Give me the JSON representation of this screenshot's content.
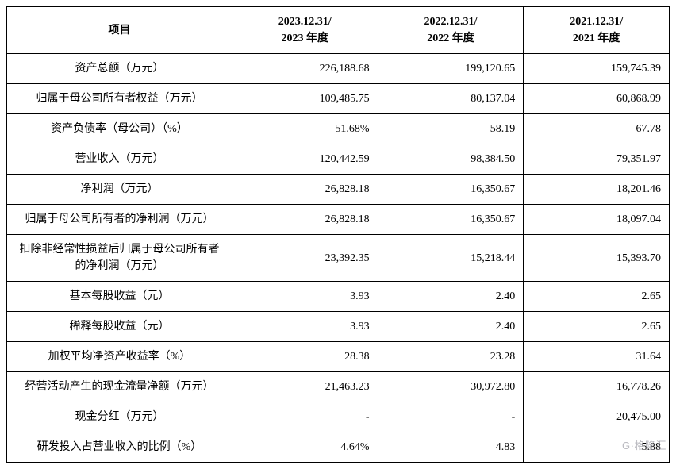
{
  "table": {
    "type": "table",
    "background_color": "#ffffff",
    "border_color": "#000000",
    "text_color": "#000000",
    "font_family": "SimSun",
    "header_fontsize": 14,
    "cell_fontsize": 14,
    "header_font_weight": "bold",
    "column_widths_pct": [
      34,
      22,
      22,
      22
    ],
    "header_align": "center",
    "label_align": "center",
    "value_align": "right",
    "columns": [
      "项目",
      "2023.12.31/\n2023 年度",
      "2022.12.31/\n2022 年度",
      "2021.12.31/\n2021 年度"
    ],
    "rows": [
      {
        "label": "资产总额（万元）",
        "v1": "226,188.68",
        "v2": "199,120.65",
        "v3": "159,745.39"
      },
      {
        "label": "归属于母公司所有者权益（万元）",
        "v1": "109,485.75",
        "v2": "80,137.04",
        "v3": "60,868.99"
      },
      {
        "label": "资产负债率（母公司）（%）",
        "v1": "51.68%",
        "v2": "58.19",
        "v3": "67.78"
      },
      {
        "label": "营业收入（万元）",
        "v1": "120,442.59",
        "v2": "98,384.50",
        "v3": "79,351.97"
      },
      {
        "label": "净利润（万元）",
        "v1": "26,828.18",
        "v2": "16,350.67",
        "v3": "18,201.46"
      },
      {
        "label": "归属于母公司所有者的净利润（万元）",
        "v1": "26,828.18",
        "v2": "16,350.67",
        "v3": "18,097.04"
      },
      {
        "label": "扣除非经常性损益后归属于母公司所有者的净利润（万元）",
        "v1": "23,392.35",
        "v2": "15,218.44",
        "v3": "15,393.70"
      },
      {
        "label": "基本每股收益（元）",
        "v1": "3.93",
        "v2": "2.40",
        "v3": "2.65"
      },
      {
        "label": "稀释每股收益（元）",
        "v1": "3.93",
        "v2": "2.40",
        "v3": "2.65"
      },
      {
        "label": "加权平均净资产收益率（%）",
        "v1": "28.38",
        "v2": "23.28",
        "v3": "31.64"
      },
      {
        "label": "经营活动产生的现金流量净额（万元）",
        "v1": "21,463.23",
        "v2": "30,972.80",
        "v3": "16,778.26"
      },
      {
        "label": "现金分红（万元）",
        "v1": "-",
        "v2": "-",
        "v3": "20,475.00"
      },
      {
        "label": "研发投入占营业收入的比例（%）",
        "v1": "4.64%",
        "v2": "4.83",
        "v3": "5.88"
      }
    ]
  },
  "watermark": {
    "text": "G·格隆汇",
    "color": "rgba(130,130,140,0.55)",
    "fontsize": 13
  }
}
